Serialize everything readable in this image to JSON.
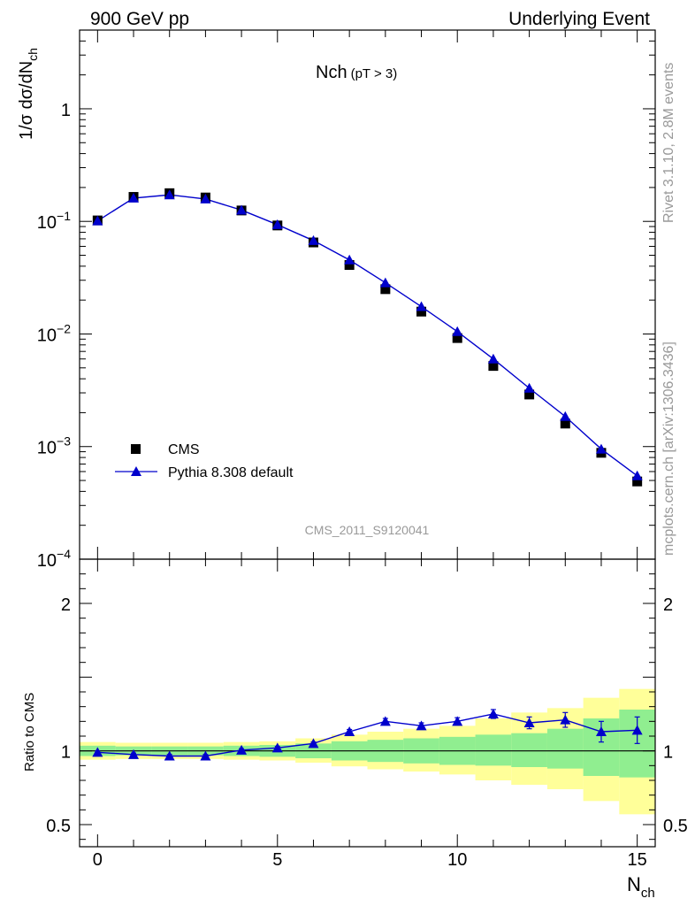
{
  "header": {
    "left": "900 GeV pp",
    "right": "Underlying Event"
  },
  "side_labels": {
    "rivet": "Rivet 3.1.10,  2.8M events",
    "mcplots": "mcplots.cern.ch [arXiv:1306.3436]"
  },
  "colors": {
    "data": "#000000",
    "mc": "#0000cc",
    "band_stat": "#90ee90",
    "band_total": "#ffff99"
  },
  "chart_data": [
    {
      "type": "scatter",
      "title": "Nch",
      "subtitle": "(pT >  3)",
      "ylabel_main": "1/σ dσ/dN",
      "ylabel_sub": "ch",
      "xlabel": "",
      "xlim": [
        -0.5,
        15.5
      ],
      "ylim": [
        0.0001,
        5
      ],
      "yscale": "log",
      "yticks": [
        {
          "value": 1,
          "label": "1"
        },
        {
          "value": 0.1,
          "base": "10",
          "exp": "−1"
        },
        {
          "value": 0.01,
          "base": "10",
          "exp": "−2"
        },
        {
          "value": 0.001,
          "base": "10",
          "exp": "−3"
        },
        {
          "value": 0.0001,
          "base": "10",
          "exp": "−4"
        }
      ],
      "watermark": "CMS_2011_S9120041",
      "legend": {
        "placement": "bottom-left",
        "entries": [
          "CMS",
          "Pythia 8.308 default"
        ]
      },
      "x": [
        0,
        1,
        2,
        3,
        4,
        5,
        6,
        7,
        8,
        9,
        10,
        11,
        12,
        13,
        14,
        15
      ],
      "series": [
        {
          "name": "CMS",
          "marker": "square",
          "values": [
            0.102,
            0.165,
            0.178,
            0.163,
            0.125,
            0.092,
            0.065,
            0.041,
            0.025,
            0.0158,
            0.0092,
            0.0052,
            0.0029,
            0.0016,
            0.00088,
            0.00049
          ]
        },
        {
          "name": "Pythia 8.308 default",
          "marker": "triangle",
          "values": [
            0.101,
            0.161,
            0.172,
            0.158,
            0.126,
            0.0935,
            0.0675,
            0.0455,
            0.0285,
            0.0175,
            0.0105,
            0.006,
            0.0033,
            0.00185,
            0.00095,
            0.00055
          ]
        }
      ]
    },
    {
      "type": "line",
      "ylabel": "Ratio to CMS",
      "xlabel": "N",
      "xlabel_sub": "ch",
      "xlim": [
        -0.5,
        15.5
      ],
      "ylim": [
        0.35,
        2.3
      ],
      "xticks": [
        0,
        5,
        10,
        15
      ],
      "yticks": [
        0.5,
        1,
        2
      ],
      "x": [
        0,
        1,
        2,
        3,
        4,
        5,
        6,
        7,
        8,
        9,
        10,
        11,
        12,
        13,
        14,
        15
      ],
      "ratio": [
        0.99,
        0.975,
        0.965,
        0.965,
        1.005,
        1.02,
        1.05,
        1.13,
        1.2,
        1.17,
        1.2,
        1.25,
        1.19,
        1.21,
        1.13,
        1.14
      ],
      "ratio_err": [
        0.01,
        0.01,
        0.01,
        0.01,
        0.01,
        0.01,
        0.01,
        0.015,
        0.02,
        0.02,
        0.025,
        0.03,
        0.04,
        0.05,
        0.07,
        0.09
      ],
      "band_total": {
        "lo": [
          0.94,
          0.945,
          0.945,
          0.945,
          0.94,
          0.935,
          0.92,
          0.895,
          0.875,
          0.86,
          0.84,
          0.8,
          0.77,
          0.74,
          0.66,
          0.57
        ],
        "hi": [
          1.06,
          1.055,
          1.055,
          1.055,
          1.06,
          1.065,
          1.085,
          1.11,
          1.13,
          1.15,
          1.17,
          1.22,
          1.26,
          1.29,
          1.36,
          1.42
        ]
      },
      "band_stat": {
        "lo": [
          0.965,
          0.97,
          0.97,
          0.97,
          0.965,
          0.96,
          0.95,
          0.935,
          0.925,
          0.915,
          0.905,
          0.9,
          0.89,
          0.88,
          0.83,
          0.82
        ],
        "hi": [
          1.035,
          1.03,
          1.03,
          1.03,
          1.035,
          1.04,
          1.05,
          1.065,
          1.075,
          1.085,
          1.095,
          1.11,
          1.12,
          1.15,
          1.22,
          1.28
        ]
      }
    }
  ]
}
